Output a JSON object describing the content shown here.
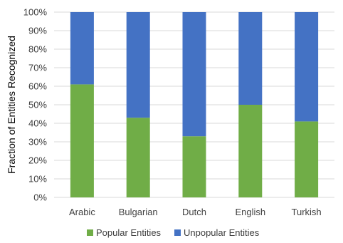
{
  "chart_data": {
    "type": "bar",
    "stacked": true,
    "categories": [
      "Arabic",
      "Bulgarian",
      "Dutch",
      "English",
      "Turkish"
    ],
    "series": [
      {
        "name": "Popular Entities",
        "color": "#70ad47",
        "values": [
          61,
          43,
          33,
          50,
          41
        ]
      },
      {
        "name": "Unpopular Entities",
        "color": "#4472c4",
        "values": [
          39,
          57,
          67,
          50,
          59
        ]
      }
    ],
    "ylabel": "Fraction of Entities Recognized",
    "xlabel": "",
    "ylim": [
      0,
      100
    ],
    "yticks": [
      "0%",
      "10%",
      "20%",
      "30%",
      "40%",
      "50%",
      "60%",
      "70%",
      "80%",
      "90%",
      "100%"
    ],
    "grid": true,
    "legend_position": "bottom"
  }
}
